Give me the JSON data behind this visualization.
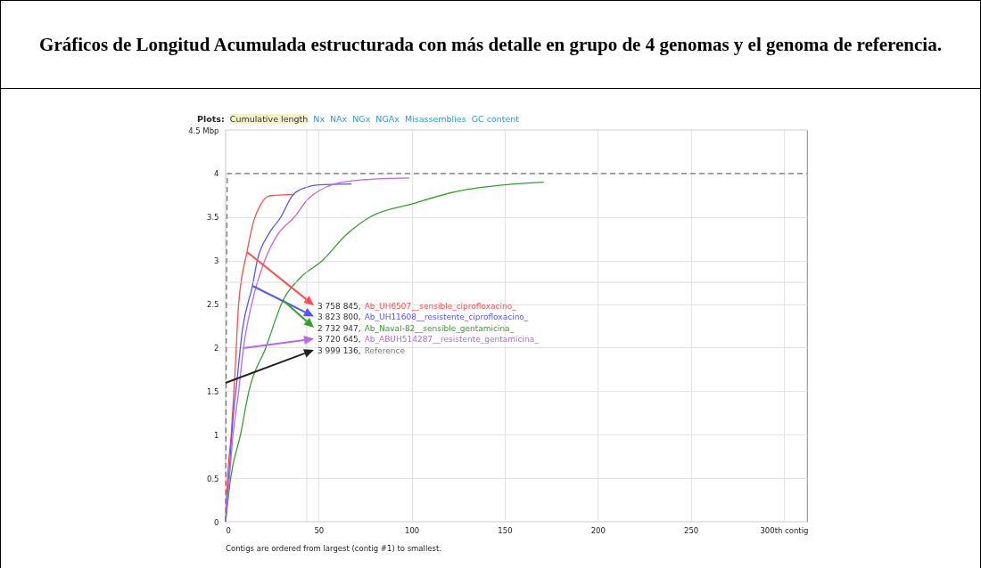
{
  "chart_data": {
    "type": "line",
    "title": "Gráficos de Longitud Acumulada estructurada con más detalle en grupo de 4 genomas y el genoma de referencia.",
    "xlim": [
      0,
      312.5
    ],
    "xticks": [
      0,
      50,
      100,
      150,
      200,
      250,
      {
        "value": 300,
        "label": "300th contig"
      }
    ],
    "ylim": [
      0,
      4.5
    ],
    "yticks": [
      0,
      0.5,
      1,
      1.5,
      2,
      2.5,
      3,
      3.5,
      4,
      {
        "value": 4.5,
        "label": "4.5 Mbp"
      }
    ],
    "grid": true,
    "series": [
      {
        "name": "Ab_UH6507__sensible_ciprofloxacino_",
        "color": "#ff4d4d",
        "x": [
          0,
          1,
          3,
          5,
          7,
          11.5,
          15,
          19,
          23,
          27,
          37
        ],
        "values": [
          0,
          0.5,
          1.0,
          1.7,
          2.5,
          3.1,
          3.45,
          3.65,
          3.74,
          3.75,
          3.76
        ]
      },
      {
        "name": "Ab_UH11608__resistente_ciprofloxacino_",
        "color": "#5555ff",
        "x": [
          0,
          2,
          4,
          6,
          9,
          14.4,
          17,
          23,
          29.7,
          36,
          43,
          50,
          67.6
        ],
        "values": [
          0,
          0.6,
          1.2,
          1.6,
          2.2,
          2.71,
          3.0,
          3.3,
          3.5,
          3.75,
          3.84,
          3.87,
          3.88
        ]
      },
      {
        "name": "Ab_Naval-82__sensible_gentamicina_",
        "color": "#33a02c",
        "x": [
          0,
          2.7,
          8,
          12.5,
          21.6,
          31,
          40,
          52,
          65,
          77.6,
          100,
          125.5,
          150,
          171
        ],
        "values": [
          0,
          0.5,
          1.0,
          1.5,
          2.0,
          2.55,
          2.8,
          3.0,
          3.3,
          3.5,
          3.65,
          3.8,
          3.87,
          3.9
        ]
      },
      {
        "name": "Ab_ABUH514287__resistente_gentamicina_",
        "color": "#bb66ee",
        "x": [
          0,
          2,
          4,
          7,
          9.6,
          14,
          21,
          28,
          37,
          44,
          50,
          58.5,
          75,
          98.7
        ],
        "values": [
          0,
          0.5,
          1.0,
          1.5,
          2.0,
          2.5,
          3.0,
          3.3,
          3.5,
          3.7,
          3.8,
          3.88,
          3.93,
          3.95
        ]
      },
      {
        "name": "Reference",
        "color": "#777777",
        "line_style": "dashed",
        "x": [
          0,
          1,
          312.5
        ],
        "values": [
          0,
          4,
          4
        ]
      }
    ],
    "ref_lines": [
      {
        "axis": "x",
        "value": 43.6,
        "color": "#dddddd"
      },
      {
        "axis": "y",
        "value": 2.75,
        "color": "#dddddd"
      }
    ],
    "annotations": [
      "Plots:",
      "Cumulative length",
      "Nx",
      "NAx",
      "NGx",
      "NGAx",
      "Misassemblies",
      "GC content",
      "Contigs are ordered from largest (contig #1) to smallest.",
      "3 758 845,",
      "3 823 800,",
      "2 732 947,",
      "3 720 645,",
      "3 999 136,"
    ]
  }
}
